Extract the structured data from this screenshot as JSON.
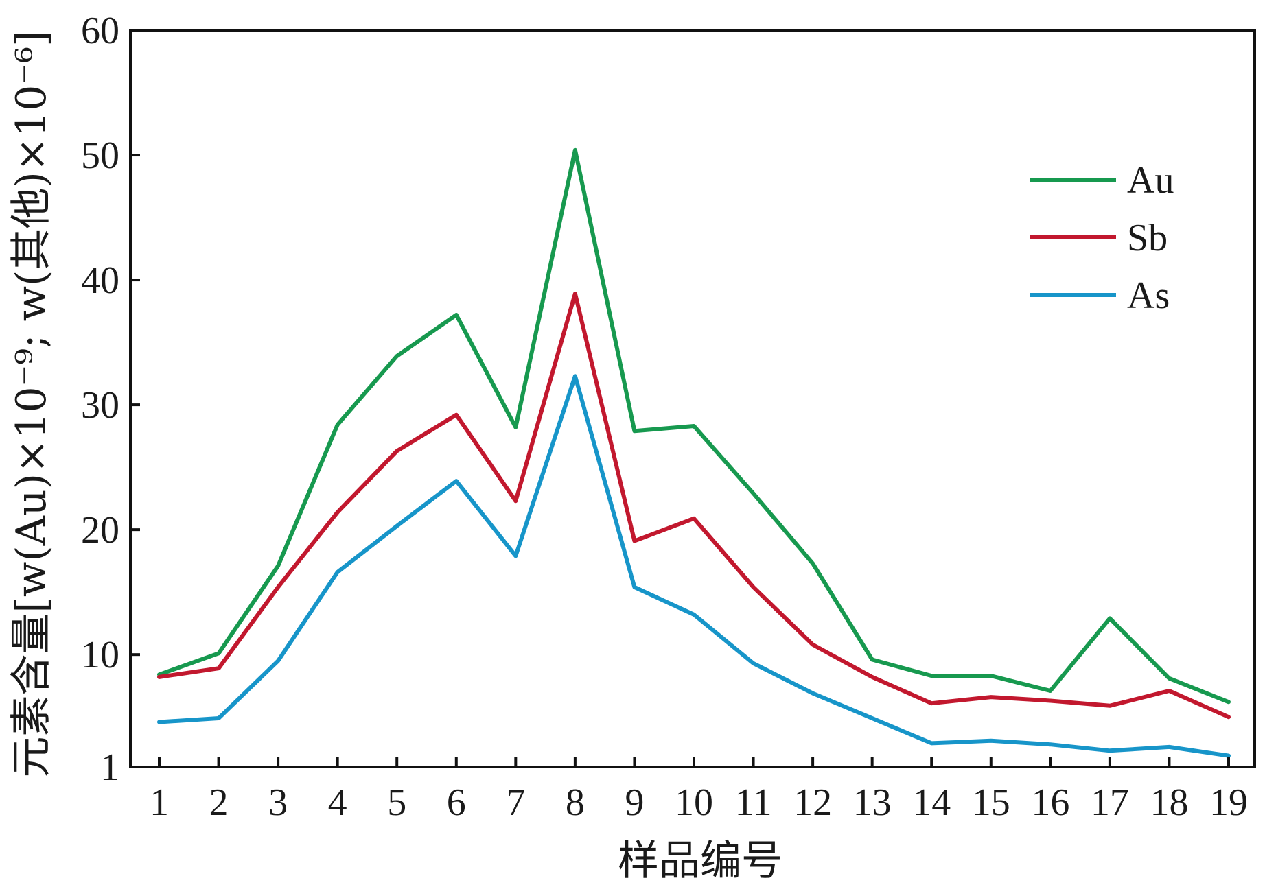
{
  "chart_data": {
    "type": "line",
    "x": [
      1,
      2,
      3,
      4,
      5,
      6,
      7,
      8,
      9,
      10,
      11,
      12,
      13,
      14,
      15,
      16,
      17,
      18,
      19
    ],
    "xlabel": "样品编号",
    "ylabel": "元素含量[w(Au)×10⁻⁹; w(其他)×10⁻⁶]",
    "ylim": [
      1,
      60
    ],
    "yticks": [
      1,
      10,
      20,
      30,
      40,
      50,
      60
    ],
    "ytick_labels": [
      "1",
      "10",
      "20",
      "30",
      "40",
      "50",
      "60"
    ],
    "xtick_labels": [
      "1",
      "2",
      "3",
      "4",
      "5",
      "6",
      "7",
      "8",
      "9",
      "10",
      "11",
      "12",
      "13",
      "14",
      "15",
      "16",
      "17",
      "18",
      "19"
    ],
    "grid": false,
    "legend_position": "top-right",
    "series": [
      {
        "name": "Au",
        "color": "#17994f",
        "values": [
          8.4,
          10.1,
          17.1,
          28.4,
          33.9,
          37.2,
          28.2,
          50.4,
          27.9,
          28.3,
          22.9,
          17.3,
          9.6,
          8.3,
          8.3,
          7.1,
          12.9,
          8.1,
          6.2
        ]
      },
      {
        "name": "Sb",
        "color": "#c2182e",
        "values": [
          8.2,
          8.9,
          15.4,
          21.4,
          26.3,
          29.2,
          22.3,
          38.9,
          19.1,
          20.9,
          15.4,
          10.8,
          8.2,
          6.1,
          6.6,
          6.3,
          5.9,
          7.1,
          5.0
        ]
      },
      {
        "name": "As",
        "color": "#1795c9",
        "values": [
          4.6,
          4.9,
          9.5,
          16.6,
          20.3,
          23.9,
          17.9,
          32.3,
          15.4,
          13.2,
          9.3,
          6.9,
          4.9,
          2.9,
          3.1,
          2.8,
          2.3,
          2.6,
          1.9
        ]
      }
    ]
  }
}
